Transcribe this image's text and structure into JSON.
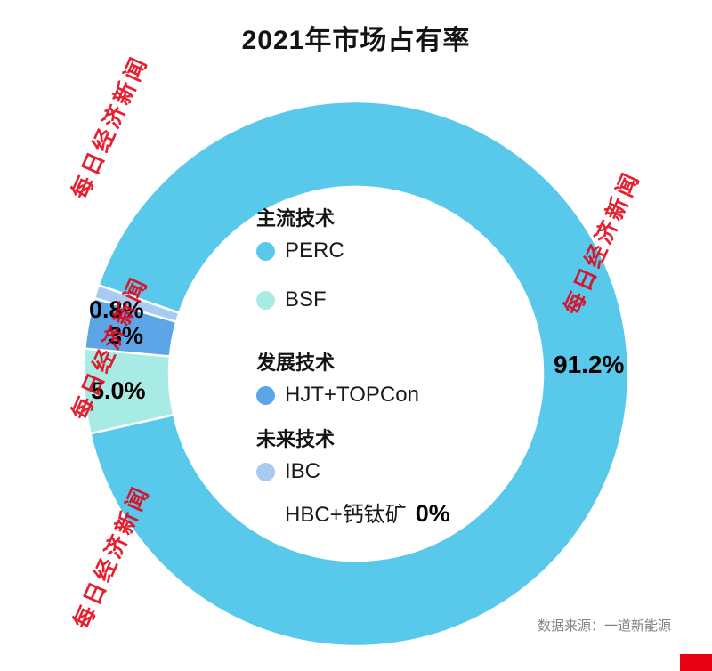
{
  "title": "2021年市场占有率",
  "source": "数据来源：一道新能源",
  "watermark": {
    "text": "每日经济新闻",
    "color": "#e30014"
  },
  "chart_data": {
    "type": "pie",
    "donut": true,
    "title": "2021年市场占有率",
    "start_angle_deg": 289,
    "legend_position": "center",
    "segments": [
      {
        "label": "PERC",
        "value": 91.2,
        "display": "91.2%",
        "color": "#58C8EB"
      },
      {
        "label": "BSF",
        "value": 5.0,
        "display": "5.0%",
        "color": "#A8EBE4"
      },
      {
        "label": "HJT+TOPCon",
        "value": 3,
        "display": "3%",
        "color": "#5CA6E8"
      },
      {
        "label": "IBC",
        "value": 0.8,
        "display": "0.8%",
        "color": "#A8CBF1"
      },
      {
        "label": "HBC+钙钛矿",
        "value": 0,
        "display": "0%",
        "color": "#A8CBF1"
      }
    ],
    "legend": {
      "groups": [
        {
          "heading": "主流技术",
          "items": [
            {
              "label": "PERC",
              "color": "#58C8EB"
            },
            {
              "label": "BSF",
              "color": "#A8EBE4"
            }
          ]
        },
        {
          "heading": "发展技术",
          "items": [
            {
              "label": "HJT+TOPCon",
              "color": "#5CA6E8"
            }
          ]
        },
        {
          "heading": "未来技术",
          "items": [
            {
              "label": "IBC",
              "color": "#A8CBF1"
            },
            {
              "label": "HBC+钙钛矿",
              "value_text": "0%"
            }
          ]
        }
      ]
    }
  }
}
